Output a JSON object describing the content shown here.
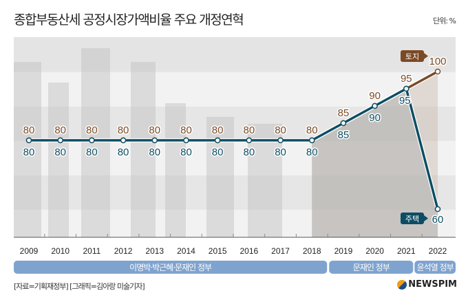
{
  "title": "종합부동산세 공정시장가액비율 주요 개정연혁",
  "unit": "단위: %",
  "source": "[자료=기획재정부] [그래픽=김아랑 미술기자]",
  "logo": "NEWSPIM",
  "colors": {
    "land": "#7a4a24",
    "housing": "#0d4d63",
    "era": "#7fa3cf"
  },
  "chart_data": {
    "type": "line",
    "x": [
      "2009",
      "2010",
      "2011",
      "2012",
      "2013",
      "2014",
      "2015",
      "2016",
      "2017",
      "2018",
      "2019",
      "2020",
      "2021",
      "2022"
    ],
    "series": [
      {
        "name": "토지",
        "values": [
          80,
          80,
          80,
          80,
          80,
          80,
          80,
          80,
          80,
          80,
          85,
          90,
          95,
          100
        ]
      },
      {
        "name": "주택",
        "values": [
          80,
          80,
          80,
          80,
          80,
          80,
          80,
          80,
          80,
          80,
          85,
          90,
          95,
          60
        ]
      }
    ],
    "ylim": [
      50,
      105
    ],
    "grid": "horizontal bands",
    "eras": [
      {
        "label": "이명박·박근혜·문재인 정부",
        "from": "2009",
        "to": "2018"
      },
      {
        "label": "문재인 정부",
        "from": "2019",
        "to": "2021"
      },
      {
        "label": "윤석열 정부",
        "from": "2022",
        "to": "2022"
      }
    ]
  }
}
